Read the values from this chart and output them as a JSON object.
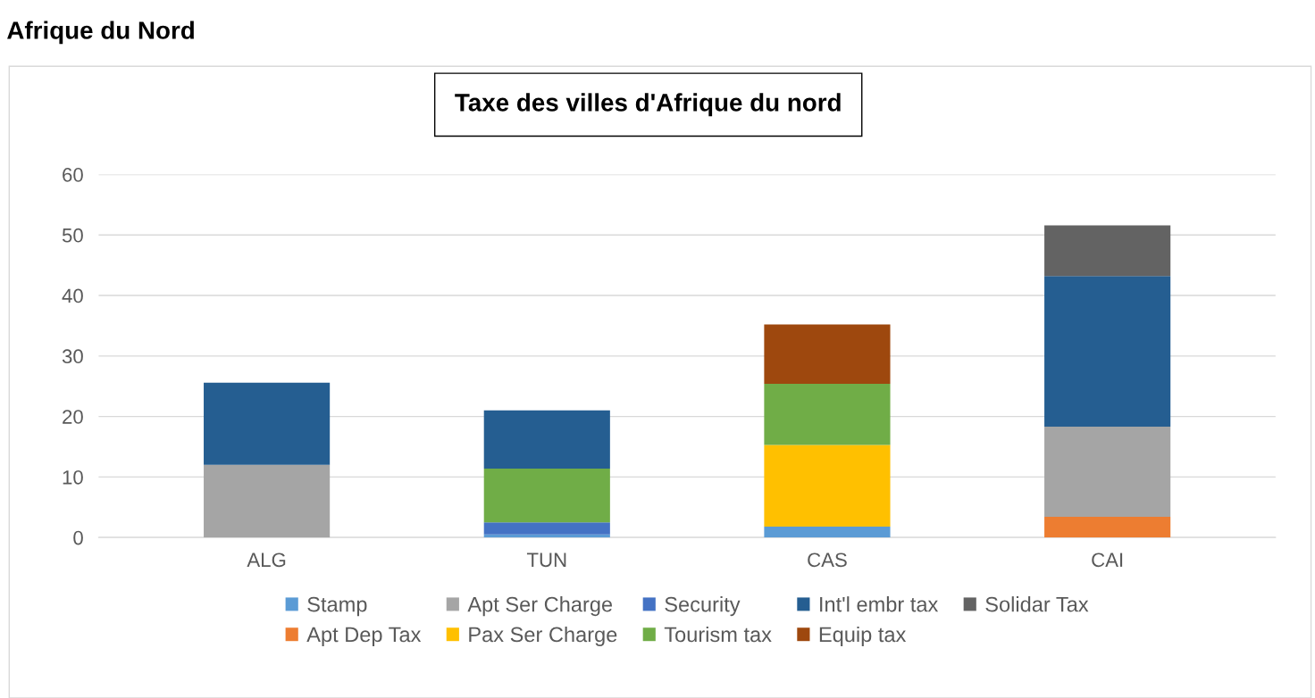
{
  "chart_data": {
    "type": "bar",
    "stacked": true,
    "title": "Taxe des villes d'Afrique du nord",
    "subtitle": "Afrique du Nord",
    "categories": [
      "ALG",
      "TUN",
      "CAS",
      "CAI"
    ],
    "series": [
      {
        "name": "Stamp",
        "color": "#5b9bd5",
        "values": [
          null,
          0.5,
          1.8,
          null
        ]
      },
      {
        "name": "Apt Dep Tax",
        "color": "#ed7d31",
        "values": [
          null,
          null,
          null,
          3.4
        ]
      },
      {
        "name": "Apt Ser Charge",
        "color": "#a5a5a5",
        "values": [
          12,
          null,
          null,
          14.9
        ]
      },
      {
        "name": "Pax Ser Charge",
        "color": "#ffc000",
        "values": [
          null,
          null,
          13.5,
          null
        ]
      },
      {
        "name": "Security",
        "color": "#4472c4",
        "values": [
          null,
          2,
          null,
          null
        ]
      },
      {
        "name": "Tourism tax",
        "color": "#70ad47",
        "values": [
          null,
          8.9,
          10.1,
          null
        ]
      },
      {
        "name": "Int'l embr tax",
        "color": "#255e91",
        "values": [
          13.6,
          9.6,
          null,
          24.9
        ]
      },
      {
        "name": "Equip tax",
        "color": "#9e480e",
        "values": [
          null,
          null,
          9.8,
          null
        ]
      },
      {
        "name": "Solidar Tax",
        "color": "#636363",
        "values": [
          null,
          null,
          null,
          8.4
        ]
      }
    ],
    "ylim": [
      0,
      60
    ],
    "yticks": [
      0,
      10,
      20,
      30,
      40,
      50,
      60
    ],
    "grid": "y",
    "legend": "bottom"
  }
}
